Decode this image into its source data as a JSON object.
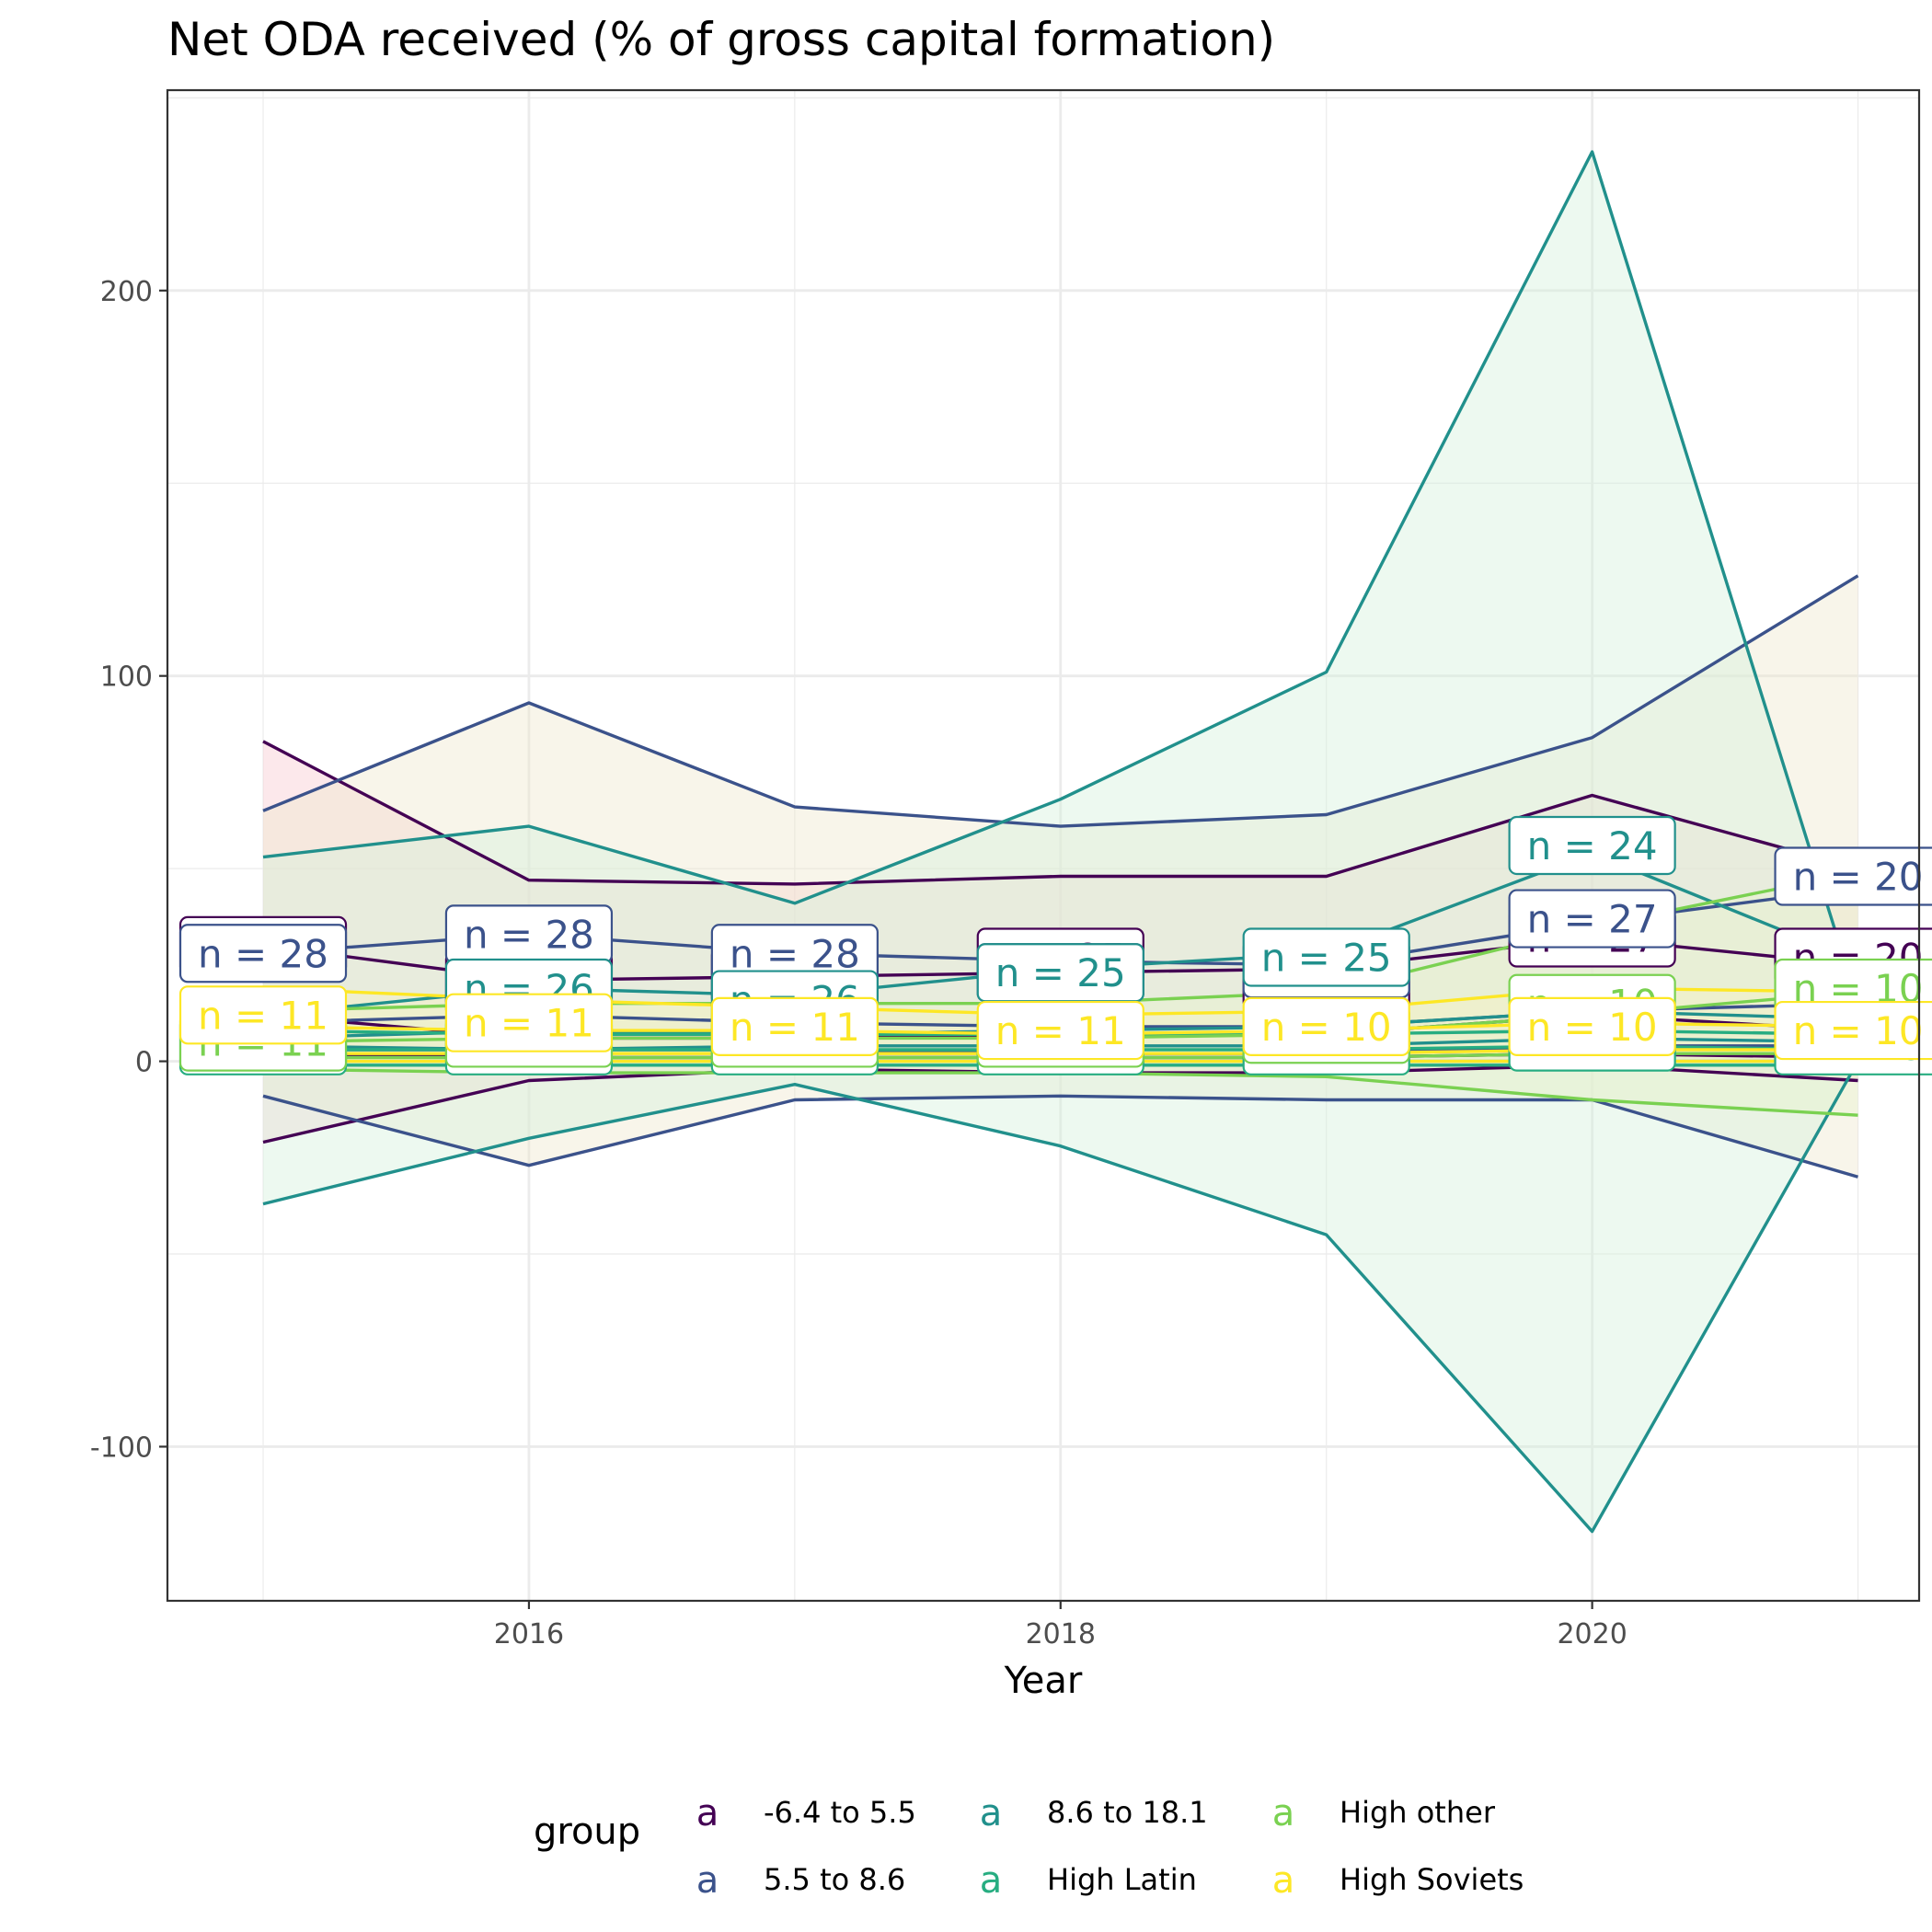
{
  "chart_data": {
    "type": "line",
    "title": "Net ODA received (% of gross capital formation)",
    "xlabel": "Year",
    "ylabel": "",
    "xlim": [
      2014.64,
      2021.23
    ],
    "ylim": [
      -140,
      252
    ],
    "x_ticks": [
      2016,
      2018,
      2020
    ],
    "y_ticks": [
      -100,
      0,
      100,
      200
    ],
    "x_tick_labels": [
      "2016",
      "2018",
      "2020"
    ],
    "y_tick_labels": [
      "-100",
      "0",
      "100",
      "200"
    ],
    "grid": true,
    "legend": {
      "title": "group",
      "position": "bottom",
      "key_glyph": "a"
    },
    "x": [
      2015,
      2016,
      2017,
      2018,
      2019,
      2020,
      2021
    ],
    "series": [
      {
        "name": "-6.4 to 5.5",
        "color": "#440154",
        "fill": "#f8c8d0",
        "upper": [
          83,
          47,
          46,
          48,
          48,
          69,
          50
        ],
        "lower": [
          -21,
          -5,
          -2,
          -3,
          -3,
          -1,
          -5
        ],
        "lines": [
          [
            30,
            21,
            22,
            23,
            24,
            32,
            25
          ],
          [
            12,
            6,
            6,
            7,
            7,
            12,
            8
          ],
          [
            2,
            1,
            1,
            1,
            1,
            2,
            1
          ]
        ],
        "n_labels": [
          {
            "x": 2015,
            "y": 30,
            "text": "n = 28"
          },
          {
            "x": 2016,
            "y": 21,
            "text": "n = 28"
          },
          {
            "x": 2017,
            "y": 22,
            "text": "n = 28"
          },
          {
            "x": 2018,
            "y": 27,
            "text": "n = 25"
          },
          {
            "x": 2019,
            "y": 21,
            "text": "n = 25"
          },
          {
            "x": 2020,
            "y": 32,
            "text": "n = 27"
          },
          {
            "x": 2021,
            "y": 27,
            "text": "n = 20"
          }
        ]
      },
      {
        "name": "5.5 to 8.6",
        "color": "#3b528b",
        "fill": "#efe8cc",
        "upper": [
          65,
          93,
          66,
          61,
          64,
          84,
          126
        ],
        "lower": [
          -9,
          -27,
          -10,
          -9,
          -10,
          -10,
          -30
        ],
        "lines": [
          [
            28,
            33,
            28,
            26,
            25,
            36,
            45
          ],
          [
            10,
            12,
            10,
            9,
            9,
            13,
            15
          ],
          [
            3,
            3,
            3,
            2,
            2,
            4,
            4
          ]
        ],
        "n_labels": [
          {
            "x": 2015,
            "y": 28,
            "text": "n = 28"
          },
          {
            "x": 2016,
            "y": 33,
            "text": "n = 28"
          },
          {
            "x": 2017,
            "y": 28,
            "text": "n = 28"
          },
          {
            "x": 2018,
            "y": 23,
            "text": "n = 25"
          },
          {
            "x": 2019,
            "y": 24,
            "text": "n = 25"
          },
          {
            "x": 2020,
            "y": 37,
            "text": "n = 27"
          },
          {
            "x": 2021,
            "y": 48,
            "text": "n = 20"
          }
        ]
      },
      {
        "name": "8.6 to 18.1",
        "color": "#21908c",
        "fill": "#d4f0dc",
        "upper": [
          53,
          61,
          41,
          68,
          101,
          236,
          15
        ],
        "lower": [
          -37,
          -20,
          -6,
          -22,
          -45,
          -122,
          0
        ],
        "lines": [
          [
            12,
            19,
            17,
            24,
            28,
            54,
            26
          ],
          [
            6,
            8,
            7,
            8,
            9,
            13,
            11
          ],
          [
            4,
            3,
            4,
            4,
            4,
            6,
            5
          ]
        ],
        "n_labels": [
          {
            "x": 2016,
            "y": 19,
            "text": "n = 26"
          },
          {
            "x": 2017,
            "y": 16,
            "text": "n = 26"
          },
          {
            "x": 2018,
            "y": 23,
            "text": "n = 25"
          },
          {
            "x": 2019,
            "y": 27,
            "text": "n = 25"
          },
          {
            "x": 2020,
            "y": 56,
            "text": "n = 24"
          },
          {
            "x": 2021,
            "y": 5,
            "text": "n = 18"
          }
        ]
      },
      {
        "name": "High Latin",
        "color": "#27ad81",
        "fill": "#d4f0dc",
        "upper": [
          8,
          7,
          7,
          7,
          7,
          8,
          7
        ],
        "lower": [
          -1,
          -1,
          -1,
          -1,
          -1,
          -1,
          -1
        ],
        "lines": [
          [
            3,
            3,
            3,
            3,
            3,
            4,
            3
          ],
          [
            0,
            0,
            0,
            0,
            0,
            0,
            0
          ]
        ],
        "n_labels": [
          {
            "x": 2015,
            "y": 4,
            "text": "n = 11"
          },
          {
            "x": 2016,
            "y": 4,
            "text": "n = 11"
          },
          {
            "x": 2017,
            "y": 4,
            "text": "n = 11"
          },
          {
            "x": 2018,
            "y": 4,
            "text": "n = 11"
          },
          {
            "x": 2019,
            "y": 4,
            "text": "n = 10"
          },
          {
            "x": 2020,
            "y": 5,
            "text": "n = 10"
          },
          {
            "x": 2021,
            "y": 4,
            "text": "n = 10"
          }
        ]
      },
      {
        "name": "High other",
        "color": "#7ad151",
        "fill": "#e6f2cc",
        "upper": [
          13,
          15,
          15,
          15,
          18,
          35,
          49
        ],
        "lower": [
          -2,
          -3,
          -3,
          -3,
          -4,
          -10,
          -14
        ],
        "lines": [
          [
            5,
            6,
            6,
            6,
            7,
            12,
            18
          ],
          [
            1,
            1,
            1,
            1,
            1,
            2,
            2
          ]
        ],
        "n_labels": [
          {
            "x": 2015,
            "y": 5,
            "text": "n = 11"
          },
          {
            "x": 2016,
            "y": 6,
            "text": "n = 11"
          },
          {
            "x": 2017,
            "y": 6,
            "text": "n = 11"
          },
          {
            "x": 2018,
            "y": 6,
            "text": "n = 11"
          },
          {
            "x": 2019,
            "y": 7,
            "text": "n = 10"
          },
          {
            "x": 2020,
            "y": 15,
            "text": "n = 10"
          },
          {
            "x": 2021,
            "y": 19,
            "text": "n = 10"
          }
        ]
      },
      {
        "name": "High Soviets",
        "color": "#fde725",
        "fill": "#f5f0c0",
        "upper": [
          19,
          16,
          14,
          12,
          13,
          19,
          18
        ],
        "lower": [
          0,
          0,
          0,
          0,
          0,
          0,
          0
        ],
        "lines": [
          [
            9,
            8,
            8,
            7,
            8,
            10,
            9
          ],
          [
            2,
            2,
            2,
            2,
            2,
            3,
            3
          ]
        ],
        "n_labels": [
          {
            "x": 2015,
            "y": 12,
            "text": "n = 11"
          },
          {
            "x": 2016,
            "y": 10,
            "text": "n = 11"
          },
          {
            "x": 2017,
            "y": 9,
            "text": "n = 11"
          },
          {
            "x": 2018,
            "y": 8,
            "text": "n = 11"
          },
          {
            "x": 2019,
            "y": 9,
            "text": "n = 10"
          },
          {
            "x": 2020,
            "y": 9,
            "text": "n = 10"
          },
          {
            "x": 2021,
            "y": 8,
            "text": "n = 10"
          }
        ]
      }
    ]
  }
}
